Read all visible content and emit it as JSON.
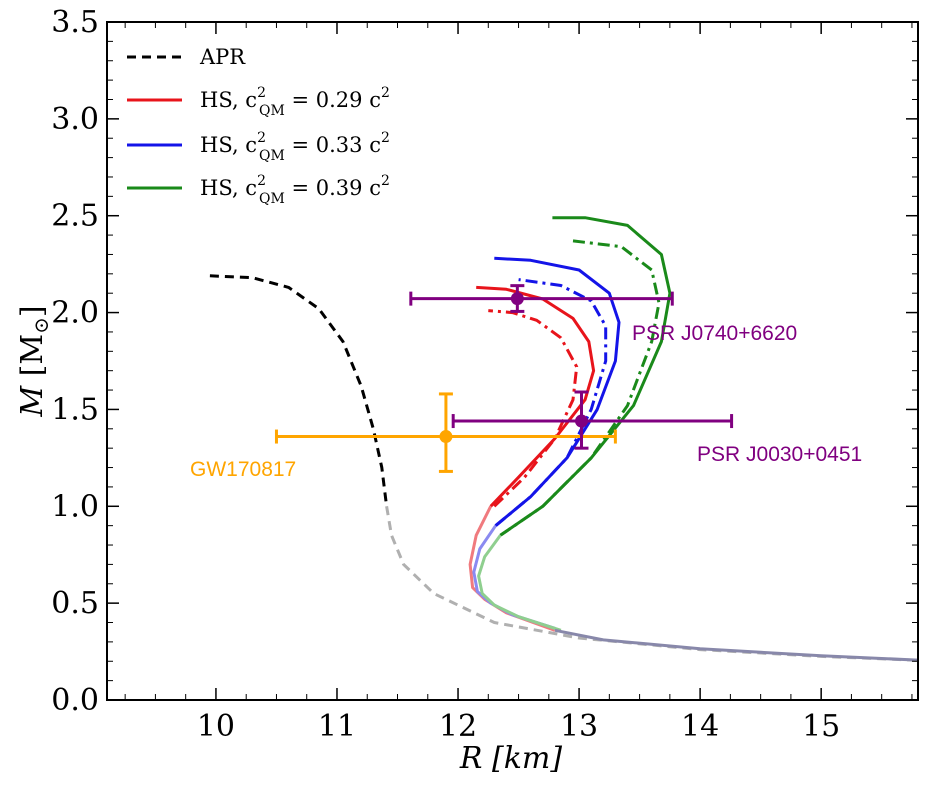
{
  "chart_data": {
    "type": "line",
    "xlabel": "R [km]",
    "ylabel": "M [M⊙]",
    "xlim": [
      9.1,
      15.8
    ],
    "ylim": [
      0.0,
      3.5
    ],
    "xticks": [
      "10",
      "11",
      "12",
      "13",
      "14",
      "15"
    ],
    "yticks": [
      "0.0",
      "0.5",
      "1.0",
      "1.5",
      "2.0",
      "2.5",
      "3.0",
      "3.5"
    ],
    "legend": [
      {
        "key": "apr",
        "label": "APR",
        "color": "#000000",
        "dash": "dashed"
      },
      {
        "key": "hs29",
        "prefix": "HS, c",
        "sup": "2",
        "sub": "QM",
        "suffix": " = 0.29 c",
        "suffix_sup": "2",
        "color": "#e8141b"
      },
      {
        "key": "hs33",
        "prefix": "HS, c",
        "sup": "2",
        "sub": "QM",
        "suffix": " = 0.33 c",
        "suffix_sup": "2",
        "color": "#1414e8"
      },
      {
        "key": "hs39",
        "prefix": "HS, c",
        "sup": "2",
        "sub": "QM",
        "suffix": " = 0.39 c",
        "suffix_sup": "2",
        "color": "#1a8a1a"
      }
    ],
    "series": [
      {
        "name": "APR (stable)",
        "color": "#000000",
        "style": "dashed",
        "points": [
          [
            9.95,
            2.19
          ],
          [
            10.3,
            2.18
          ],
          [
            10.6,
            2.13
          ],
          [
            10.85,
            2.02
          ],
          [
            11.05,
            1.85
          ],
          [
            11.2,
            1.62
          ],
          [
            11.3,
            1.4
          ],
          [
            11.37,
            1.2
          ],
          [
            11.41,
            1.0
          ]
        ]
      },
      {
        "name": "APR (low mass)",
        "color": "#b0b0b0",
        "style": "dashed",
        "points": [
          [
            11.41,
            1.0
          ],
          [
            11.45,
            0.85
          ],
          [
            11.55,
            0.7
          ],
          [
            11.8,
            0.55
          ],
          [
            12.3,
            0.4
          ],
          [
            13.0,
            0.32
          ],
          [
            14.0,
            0.26
          ],
          [
            15.0,
            0.225
          ],
          [
            15.8,
            0.205
          ]
        ]
      },
      {
        "name": "HS 0.29 solid",
        "color": "#e8141b",
        "style": "solid",
        "points": [
          [
            12.27,
            1.0
          ],
          [
            12.5,
            1.15
          ],
          [
            12.8,
            1.35
          ],
          [
            13.05,
            1.55
          ],
          [
            13.12,
            1.7
          ],
          [
            13.08,
            1.85
          ],
          [
            12.95,
            1.97
          ],
          [
            12.7,
            2.07
          ],
          [
            12.4,
            2.12
          ],
          [
            12.15,
            2.13
          ]
        ]
      },
      {
        "name": "HS 0.29 dashdot",
        "color": "#e8141b",
        "style": "dashdot",
        "points": [
          [
            12.3,
            1.0
          ],
          [
            12.55,
            1.15
          ],
          [
            12.8,
            1.35
          ],
          [
            12.95,
            1.55
          ],
          [
            12.98,
            1.72
          ],
          [
            12.85,
            1.87
          ],
          [
            12.65,
            1.96
          ],
          [
            12.45,
            2.0
          ],
          [
            12.25,
            2.01
          ]
        ]
      },
      {
        "name": "HS 0.33 solid",
        "color": "#1414e8",
        "style": "solid",
        "points": [
          [
            12.31,
            0.9
          ],
          [
            12.6,
            1.05
          ],
          [
            12.9,
            1.25
          ],
          [
            13.15,
            1.5
          ],
          [
            13.3,
            1.75
          ],
          [
            13.33,
            1.95
          ],
          [
            13.25,
            2.1
          ],
          [
            13.0,
            2.22
          ],
          [
            12.6,
            2.27
          ],
          [
            12.3,
            2.28
          ]
        ]
      },
      {
        "name": "HS 0.33 dashdot",
        "color": "#1414e8",
        "style": "dashdot",
        "points": [
          [
            12.31,
            0.9
          ],
          [
            12.6,
            1.05
          ],
          [
            12.9,
            1.25
          ],
          [
            13.1,
            1.5
          ],
          [
            13.22,
            1.75
          ],
          [
            13.22,
            1.93
          ],
          [
            13.1,
            2.06
          ],
          [
            12.85,
            2.14
          ],
          [
            12.5,
            2.17
          ]
        ]
      },
      {
        "name": "HS 0.39 solid",
        "color": "#1a8a1a",
        "style": "solid",
        "points": [
          [
            12.35,
            0.85
          ],
          [
            12.7,
            1.0
          ],
          [
            13.1,
            1.25
          ],
          [
            13.45,
            1.52
          ],
          [
            13.68,
            1.85
          ],
          [
            13.75,
            2.1
          ],
          [
            13.68,
            2.3
          ],
          [
            13.4,
            2.45
          ],
          [
            13.05,
            2.49
          ],
          [
            12.78,
            2.49
          ]
        ]
      },
      {
        "name": "HS 0.39 dashdot",
        "color": "#1a8a1a",
        "style": "dashdot",
        "points": [
          [
            12.35,
            0.85
          ],
          [
            12.7,
            1.0
          ],
          [
            13.1,
            1.25
          ],
          [
            13.4,
            1.52
          ],
          [
            13.6,
            1.85
          ],
          [
            13.66,
            2.05
          ],
          [
            13.6,
            2.22
          ],
          [
            13.35,
            2.34
          ],
          [
            12.95,
            2.37
          ]
        ]
      },
      {
        "name": "HS 0.29 low",
        "color": "#f07a7e",
        "style": "solid",
        "points": [
          [
            12.27,
            1.0
          ],
          [
            12.15,
            0.85
          ],
          [
            12.1,
            0.7
          ],
          [
            12.12,
            0.58
          ],
          [
            12.22,
            0.52
          ],
          [
            12.4,
            0.45
          ],
          [
            12.8,
            0.36
          ]
        ]
      },
      {
        "name": "HS 0.33 low",
        "color": "#8a8af0",
        "style": "solid",
        "points": [
          [
            12.31,
            0.9
          ],
          [
            12.18,
            0.78
          ],
          [
            12.13,
            0.66
          ],
          [
            12.16,
            0.56
          ],
          [
            12.27,
            0.5
          ],
          [
            12.45,
            0.44
          ],
          [
            12.8,
            0.37
          ]
        ]
      },
      {
        "name": "HS 0.39 low",
        "color": "#8fcf8f",
        "style": "solid",
        "points": [
          [
            12.35,
            0.85
          ],
          [
            12.22,
            0.74
          ],
          [
            12.17,
            0.64
          ],
          [
            12.2,
            0.55
          ],
          [
            12.3,
            0.49
          ],
          [
            12.5,
            0.43
          ],
          [
            12.85,
            0.36
          ]
        ]
      },
      {
        "name": "Common tail",
        "color": "#8888aa",
        "style": "solid",
        "points": [
          [
            12.8,
            0.36
          ],
          [
            13.2,
            0.31
          ],
          [
            14.0,
            0.265
          ],
          [
            15.0,
            0.228
          ],
          [
            15.8,
            0.206
          ]
        ]
      }
    ],
    "error_bars": [
      {
        "label": "GW170817",
        "color": "#ffa500",
        "x": 11.9,
        "y": 1.36,
        "xerr": [
          10.5,
          13.3
        ],
        "yerr": [
          1.18,
          1.58
        ]
      },
      {
        "label": "PSR J0740+6620",
        "color": "#800080",
        "x": 12.49,
        "y": 2.072,
        "xerr": [
          11.61,
          13.77
        ],
        "yerr": [
          2.006,
          2.139
        ]
      },
      {
        "label": "PSR J0030+0451",
        "color": "#800080",
        "x": 13.02,
        "y": 1.44,
        "xerr": [
          11.96,
          14.26
        ],
        "yerr": [
          1.3,
          1.59
        ]
      }
    ]
  }
}
